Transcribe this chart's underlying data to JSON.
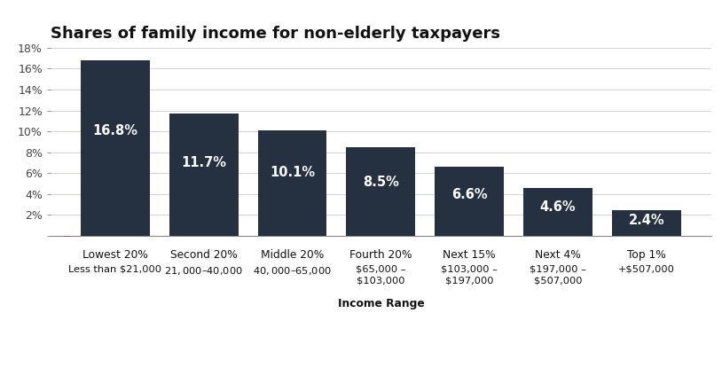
{
  "title": "Shares of family income for non-elderly taxpayers",
  "categories": [
    "Lowest 20%",
    "Second 20%",
    "Middle 20%",
    "Fourth 20%",
    "Next 15%",
    "Next 4%",
    "Top 1%"
  ],
  "subcategories": [
    "Less than $21,000",
    "$21,000 – $40,000",
    "$40,000 – $65,000",
    "$65,000 –\n$103,000",
    "$103,000 –\n$197,000",
    "$197,000 –\n$507,000",
    "+$507,000"
  ],
  "xlabel_bottom": "Income Range",
  "xlabel_bottom_category_index": 3,
  "values": [
    16.8,
    11.7,
    10.1,
    8.5,
    6.6,
    4.6,
    2.4
  ],
  "bar_color": "#253040",
  "bar_labels": [
    "16.8%",
    "11.7%",
    "10.1%",
    "8.5%",
    "6.6%",
    "4.6%",
    "2.4%"
  ],
  "label_color": "#ffffff",
  "label_fontsize": 10.5,
  "ylim": [
    0,
    18
  ],
  "yticks": [
    0,
    2,
    4,
    6,
    8,
    10,
    12,
    14,
    16,
    18
  ],
  "ytick_labels": [
    "",
    "2%",
    "4%",
    "6%",
    "8%",
    "10%",
    "12%",
    "14%",
    "16%",
    "18%"
  ],
  "title_fontsize": 13,
  "background_color": "#ffffff",
  "tick_color": "#444444",
  "grid_color": "#cccccc",
  "axis_color": "#888888"
}
